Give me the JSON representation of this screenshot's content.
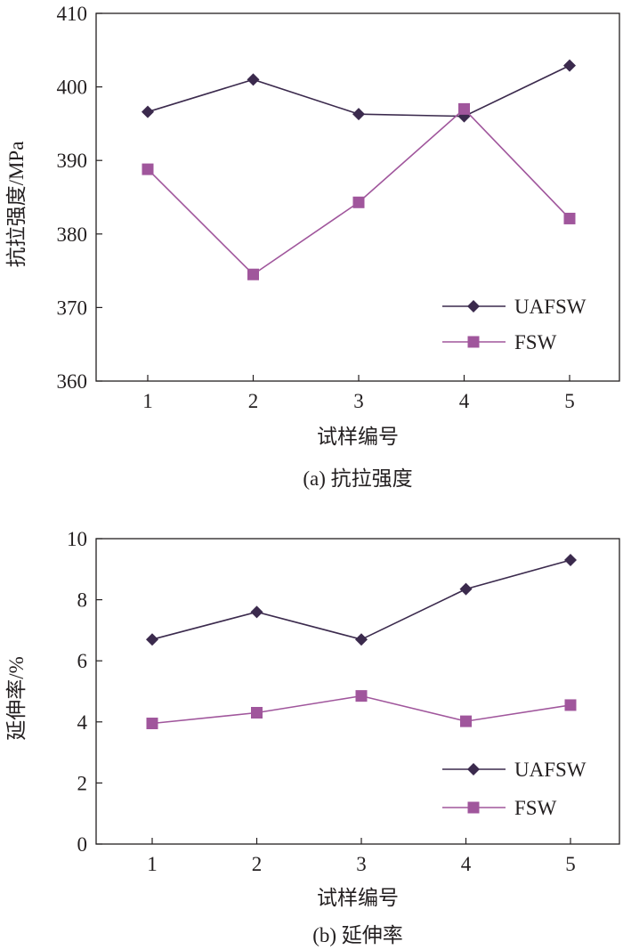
{
  "chart_data": [
    {
      "type": "line",
      "categories": [
        "1",
        "2",
        "3",
        "4",
        "5"
      ],
      "x": [
        1,
        2,
        3,
        4,
        5
      ],
      "series": [
        {
          "name": "UAFSW",
          "marker": "diamond",
          "color": "#3b2a4d",
          "values": [
            396.6,
            401.0,
            396.3,
            396.0,
            402.9
          ]
        },
        {
          "name": "FSW",
          "marker": "square",
          "color": "#a0569c",
          "values": [
            388.8,
            374.5,
            384.3,
            397.0,
            382.1
          ]
        }
      ],
      "xlabel": "试样编号",
      "ylabel": "抗拉强度/MPa",
      "ylim": [
        360,
        410
      ],
      "yticks": [
        360,
        370,
        380,
        390,
        400,
        410
      ],
      "caption": "(a) 抗拉强度",
      "legend": "bottom-right",
      "grid": false
    },
    {
      "type": "line",
      "categories": [
        "1",
        "2",
        "3",
        "4",
        "5"
      ],
      "x": [
        1,
        2,
        3,
        4,
        5
      ],
      "series": [
        {
          "name": "UAFSW",
          "marker": "diamond",
          "color": "#3b2a4d",
          "values": [
            6.7,
            7.6,
            6.7,
            8.35,
            9.3
          ]
        },
        {
          "name": "FSW",
          "marker": "square",
          "color": "#a0569c",
          "values": [
            3.95,
            4.3,
            4.85,
            4.02,
            4.55
          ]
        }
      ],
      "xlabel": "试样编号",
      "ylabel": "延伸率/%",
      "ylim": [
        0,
        10
      ],
      "yticks": [
        0,
        2,
        4,
        6,
        8,
        10
      ],
      "caption": "(b) 延伸率",
      "legend": "bottom-right",
      "grid": false
    }
  ]
}
